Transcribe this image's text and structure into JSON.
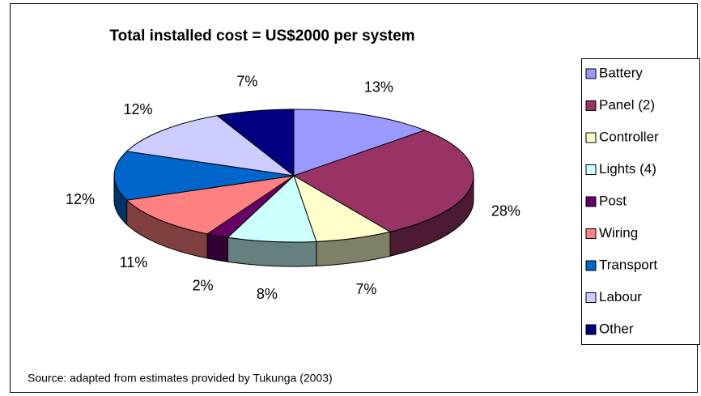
{
  "chart_data": {
    "type": "pie3d",
    "title": "Total installed cost = US$2000 per system",
    "note": "Source: adapted from estimates provided by Tukunga (2003)",
    "categories": [
      "Battery",
      "Panel (2)",
      "Controller",
      "Lights (4)",
      "Post",
      "Wiring",
      "Transport",
      "Labour",
      "Other"
    ],
    "values": [
      13,
      28,
      7,
      8,
      2,
      11,
      12,
      12,
      7
    ],
    "value_labels": [
      "13%",
      "28%",
      "7%",
      "8%",
      "2%",
      "11%",
      "12%",
      "12%",
      "7%"
    ],
    "colors": [
      "#9999ff",
      "#993366",
      "#ffffcc",
      "#ccffff",
      "#660066",
      "#ff8080",
      "#0066cc",
      "#ccccff",
      "#000080"
    ],
    "legend": "right"
  }
}
